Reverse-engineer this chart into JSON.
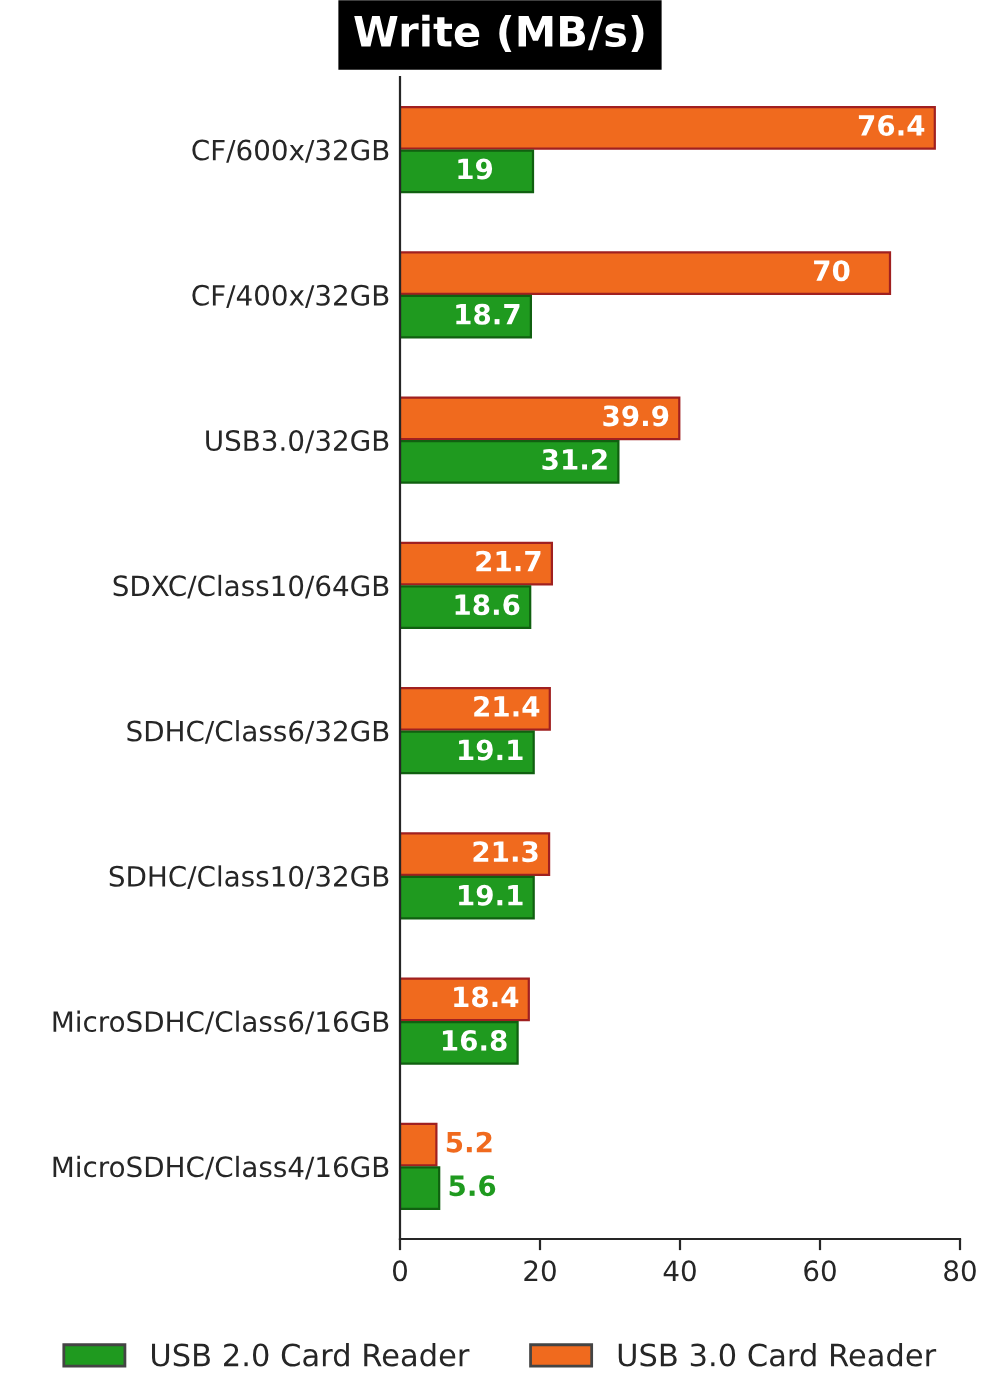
{
  "chart_data": {
    "type": "bar",
    "orientation": "horizontal",
    "title": "Write (MB/s)",
    "categories": [
      "CF/600x/32GB",
      "CF/400x/32GB",
      "USB3.0/32GB",
      "SDXC/Class10/64GB",
      "SDHC/Class6/32GB",
      "SDHC/Class10/32GB",
      "MicroSDHC/Class6/16GB",
      "MicroSDHC/Class4/16GB"
    ],
    "series": [
      {
        "name": "USB 3.0 Card Reader",
        "color": "#f06a1e",
        "values": [
          76.4,
          70,
          39.9,
          21.7,
          21.4,
          21.3,
          18.4,
          5.2
        ]
      },
      {
        "name": "USB 2.0 Card Reader",
        "color": "#1f9a1f",
        "values": [
          19,
          18.7,
          31.2,
          18.6,
          19.1,
          19.1,
          16.8,
          5.6
        ]
      }
    ],
    "xlim": [
      0,
      80
    ],
    "xticks": [
      0,
      20,
      40,
      60,
      80
    ],
    "grid": false,
    "legend": "bottom",
    "data_labels": true
  }
}
